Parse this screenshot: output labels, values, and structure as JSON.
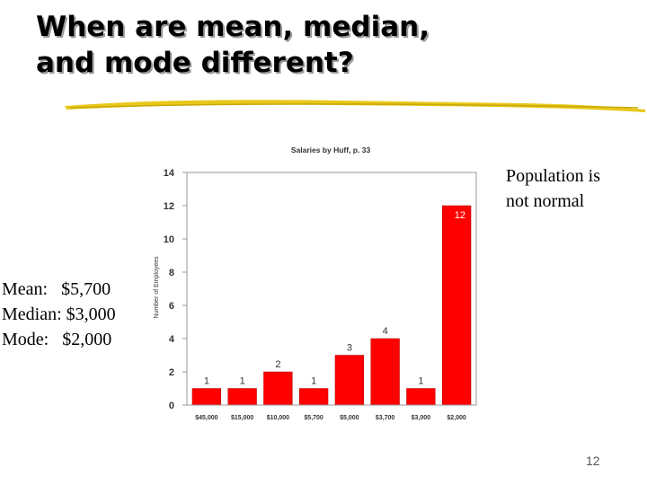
{
  "slide": {
    "title_line1": "When are mean, median,",
    "title_line2": "and mode different?",
    "stats": [
      {
        "label": "Mean:   ",
        "value": "$5,700"
      },
      {
        "label": "Median: ",
        "value": "$3,000"
      },
      {
        "label": "Mode:   ",
        "value": "$2,000"
      }
    ],
    "note_line1": "Population is",
    "note_line2": "not normal",
    "page_number": "12",
    "accent_color": "#e8c81a"
  },
  "chart_data": {
    "type": "bar",
    "title": "Salaries by Huff, p. 33",
    "ylabel": "Number of Employees",
    "xlabel": "",
    "categories": [
      "$45,000",
      "$15,000",
      "$10,000",
      "$5,700",
      "$5,000",
      "$3,700",
      "$3,000",
      "$2,000"
    ],
    "values": [
      1,
      1,
      2,
      1,
      3,
      4,
      1,
      12
    ],
    "ylim": [
      0,
      14
    ],
    "yticks": [
      0,
      2,
      4,
      6,
      8,
      10,
      12,
      14
    ],
    "bar_color": "#ff0000",
    "grid": false,
    "legend": "none"
  }
}
